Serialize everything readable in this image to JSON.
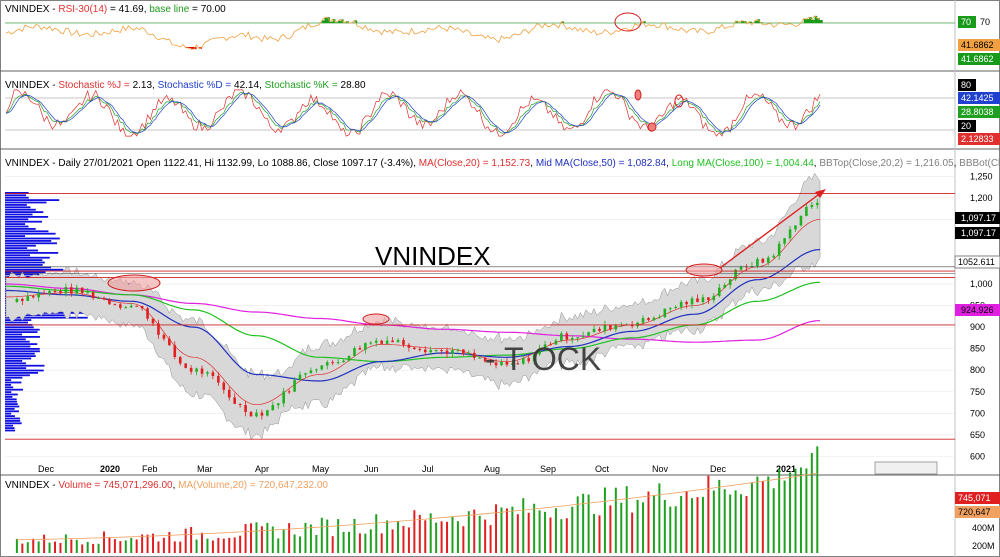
{
  "panels": {
    "rsi": {
      "symbol": "VNINDEX",
      "indicator": "RSI-30(14)",
      "value": "41.69",
      "baseline_label": "base line",
      "baseline_value": "70.00",
      "badge_70": "70",
      "badge_70_text": "70",
      "value_badge_1": "41.6862",
      "value_badge_2": "41.6862",
      "colors": {
        "above": "#1a9a1a",
        "below": "#e00000",
        "line": "#f0a040"
      }
    },
    "stochastic": {
      "symbol": "VNINDEX",
      "j_label": "Stochastic %J",
      "j_value": "2.13",
      "d_label": "Stochastic %D",
      "d_value": "42.14",
      "k_label": "Stochastic %K",
      "k_value": "28.80",
      "badges": [
        "80",
        "42.1425",
        "28.8038",
        "20",
        "2.12833"
      ],
      "colors": {
        "j": "#e03030",
        "d": "#2040d0",
        "k": "#20a020"
      }
    },
    "price": {
      "symbol": "VNINDEX",
      "info_prefix": "Daily 27/01/2021 Open 1122.41, Hi 1132.99, Lo 1088.86, Close 1097.17 (-3.4%)",
      "ma20_label": "MA(Close,20) = 1,152.73",
      "mid_ma_label": "Mid MA(Close,50) = 1,082.84",
      "long_ma_label": "Long MA(Close,100) = 1,004.44",
      "bbtop_label": "BBTop(Close,20,2) = 1,216.05",
      "bbbot_label": "BBBot(Close,20",
      "watermark_1": "VNINDEX",
      "watermark_2": "- T    OCK",
      "y_ticks": [
        "1,250",
        "1,200",
        "1,150",
        "1,000",
        "950",
        "900",
        "850",
        "800",
        "750",
        "700",
        "650",
        "600"
      ],
      "price_badges": [
        "1,097.17",
        "1,097.17",
        "1052.611",
        "924.926"
      ],
      "x_labels": [
        "Dec",
        "2020",
        "Feb",
        "Mar",
        "Apr",
        "May",
        "Jun",
        "Jul",
        "Aug",
        "Sep",
        "Oct",
        "Nov",
        "Dec",
        "2021"
      ],
      "colors": {
        "ma20": "#e03030",
        "mid_ma": "#2030c0",
        "long_ma": "#20c020",
        "band": "#c8c8c8",
        "profile": "#1010e0",
        "magenta": "#e020e0",
        "hline": "#d02020"
      }
    },
    "volume": {
      "symbol": "VNINDEX",
      "volume_label": "Volume = 745,071,296.00",
      "ma_label": "MA(Volume,20) = 720,647,232.00",
      "y_ticks": [
        "400M",
        "200M"
      ],
      "badges": [
        "745,071",
        "720,647"
      ],
      "colors": {
        "bar_up": "#20a020",
        "bar_down": "#e02020",
        "ma": "#f0a060"
      }
    }
  },
  "chart_data": {
    "type": "line",
    "title": "VNINDEX",
    "xlabel": "",
    "ylabel": "",
    "ylim": [
      580,
      1260
    ],
    "x": [
      "Dec",
      "2020",
      "Feb",
      "Mar",
      "Apr",
      "May",
      "Jun",
      "Jul",
      "Aug",
      "Sep",
      "Oct",
      "Nov",
      "Dec",
      "2021"
    ],
    "series": [
      {
        "name": "VNINDEX",
        "values": [
          965,
          985,
          950,
          800,
          700,
          810,
          870,
          845,
          810,
          880,
          910,
          960,
          1050,
          1190
        ]
      },
      {
        "name": "MA(Close,20)",
        "values": [
          970,
          980,
          955,
          830,
          720,
          790,
          860,
          850,
          820,
          870,
          905,
          950,
          1040,
          1150
        ]
      },
      {
        "name": "Mid MA(Close,50)",
        "values": [
          985,
          975,
          960,
          900,
          790,
          775,
          820,
          840,
          830,
          855,
          890,
          930,
          1010,
          1080
        ]
      },
      {
        "name": "Long MA(Close,100)",
        "values": [
          995,
          985,
          975,
          940,
          880,
          830,
          820,
          830,
          835,
          850,
          875,
          905,
          960,
          1004
        ]
      }
    ],
    "horizontal_lines": [
      1210,
      1030,
      1015,
      905,
      640
    ]
  }
}
